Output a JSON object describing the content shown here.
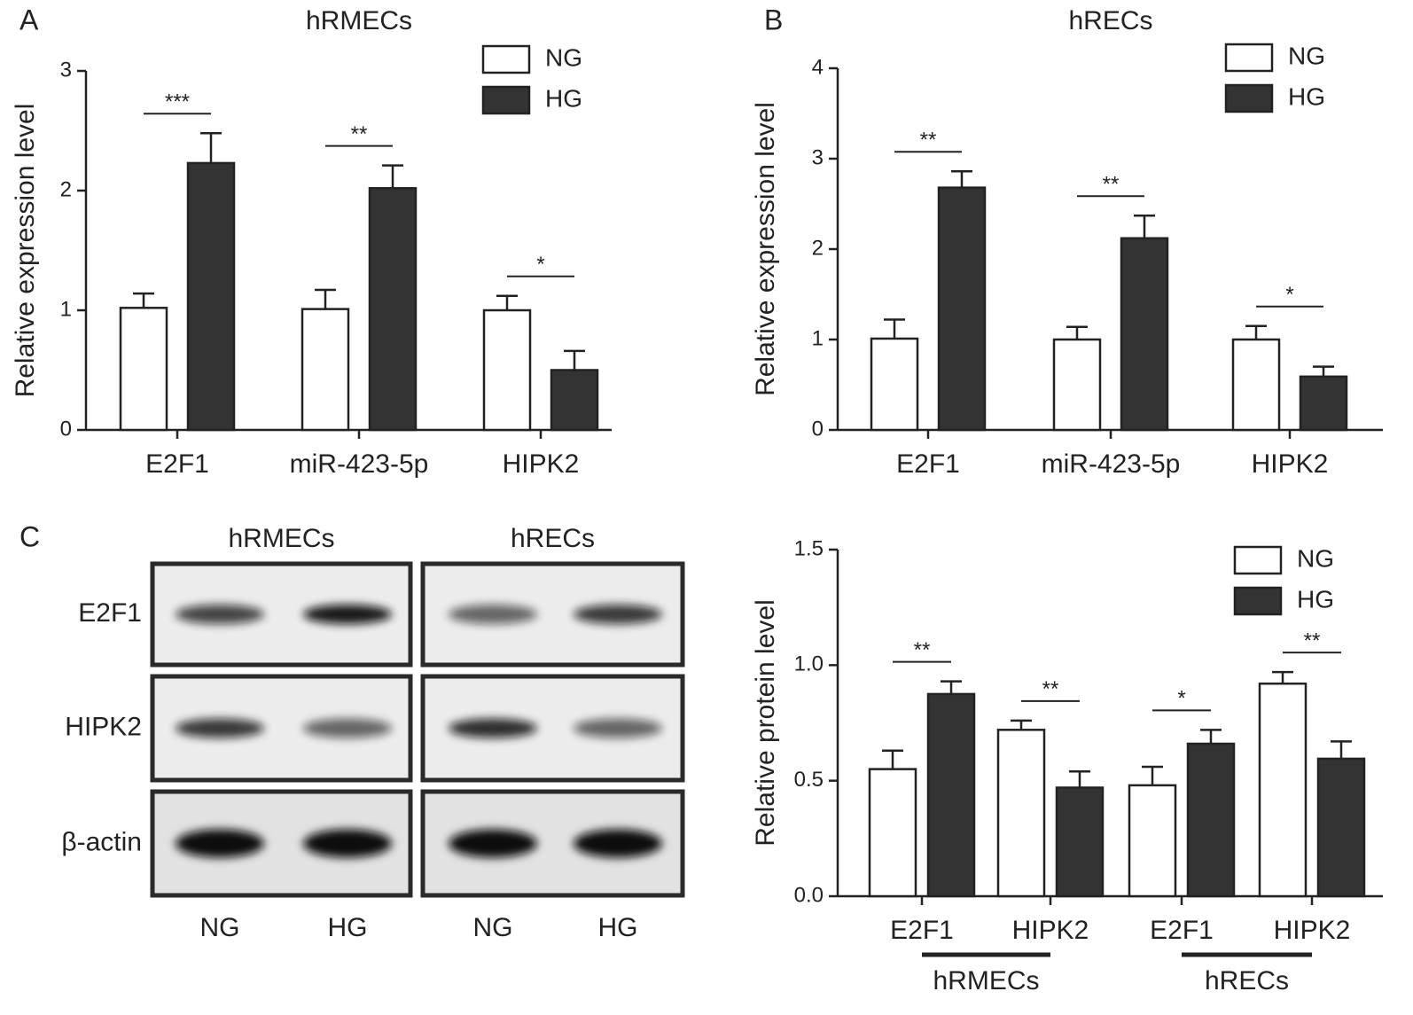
{
  "chart_data": [
    {
      "type": "bar",
      "panel": "A",
      "title": "hRMECs",
      "y_label": "Relative expression level",
      "categories": [
        "E2F1",
        "miR-423-5p",
        "HIPK2"
      ],
      "series": [
        {
          "name": "NG",
          "color": "#ffffff",
          "values": [
            1.02,
            1.01,
            1.0
          ],
          "errors": [
            0.12,
            0.16,
            0.12
          ]
        },
        {
          "name": "HG",
          "color": "#333333",
          "values": [
            2.23,
            2.02,
            0.5
          ],
          "errors": [
            0.25,
            0.19,
            0.16
          ]
        }
      ],
      "ylim": [
        0,
        3
      ],
      "yticks": [
        0,
        1,
        2,
        3
      ],
      "significance": [
        "***",
        "**",
        "*"
      ]
    },
    {
      "type": "bar",
      "panel": "B",
      "title": "hRECs",
      "y_label": "Relative expression level",
      "categories": [
        "E2F1",
        "miR-423-5p",
        "HIPK2"
      ],
      "series": [
        {
          "name": "NG",
          "color": "#ffffff",
          "values": [
            1.01,
            1.0,
            1.0
          ],
          "errors": [
            0.21,
            0.14,
            0.15
          ]
        },
        {
          "name": "HG",
          "color": "#333333",
          "values": [
            2.68,
            2.12,
            0.59
          ],
          "errors": [
            0.18,
            0.25,
            0.11
          ]
        }
      ],
      "ylim": [
        0,
        4
      ],
      "yticks": [
        0,
        1,
        2,
        3,
        4
      ],
      "significance": [
        "**",
        "**",
        "*"
      ]
    },
    {
      "type": "bar",
      "y_label": "Relative protein level",
      "categories": [
        "E2F1",
        "HIPK2",
        "E2F1",
        "HIPK2"
      ],
      "group_labels": [
        "hRMECs",
        "hRECs"
      ],
      "series": [
        {
          "name": "NG",
          "color": "#ffffff",
          "values": [
            0.55,
            0.72,
            0.48,
            0.92
          ],
          "errors": [
            0.08,
            0.04,
            0.08,
            0.05
          ]
        },
        {
          "name": "HG",
          "color": "#333333",
          "values": [
            0.875,
            0.47,
            0.66,
            0.595
          ],
          "errors": [
            0.055,
            0.07,
            0.06,
            0.075
          ]
        }
      ],
      "ylim": [
        0,
        1.5
      ],
      "yticks": [
        {
          "value": 0,
          "label": "0.0"
        },
        0.5,
        {
          "value": 1,
          "label": "1.0"
        },
        1.5
      ],
      "significance": [
        "**",
        "**",
        "*",
        "**"
      ]
    }
  ],
  "blot": {
    "panel": "C",
    "cell_lines": [
      "hRMECs",
      "hRECs"
    ],
    "proteins": [
      "E2F1",
      "HIPK2",
      "β-actin"
    ],
    "lanes": [
      "NG",
      "HG",
      "NG",
      "HG"
    ]
  }
}
